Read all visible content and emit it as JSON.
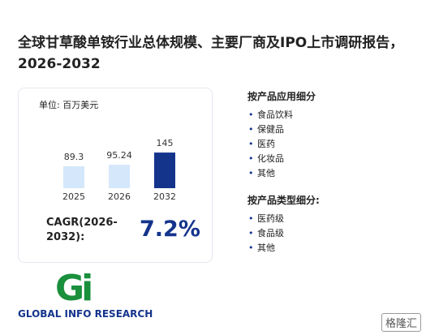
{
  "title": "全球甘草酸单铵行业总体规模、主要厂商及IPO上市调研报告，2026-2032",
  "chart_data": {
    "type": "bar",
    "unit_label": "单位: 百万美元",
    "categories": [
      "2025",
      "2026",
      "2032"
    ],
    "values": [
      89.3,
      95.24,
      145
    ],
    "colors": [
      "#d5e7fb",
      "#d5e7fb",
      "#14348c"
    ],
    "cagr_label": "CAGR(2026-2032):",
    "cagr_value": "7.2%"
  },
  "segments": {
    "application": {
      "heading": "按产品应用细分",
      "items": [
        "食品饮料",
        "保健品",
        "医药",
        "化妆品",
        "其他"
      ]
    },
    "product_type": {
      "heading": "按产品类型细分:",
      "items": [
        "医药级",
        "食品级",
        "其他"
      ]
    }
  },
  "logo": {
    "mark": "Gi",
    "name": "GLOBAL INFO RESEARCH"
  },
  "source_brand": "格隆汇"
}
